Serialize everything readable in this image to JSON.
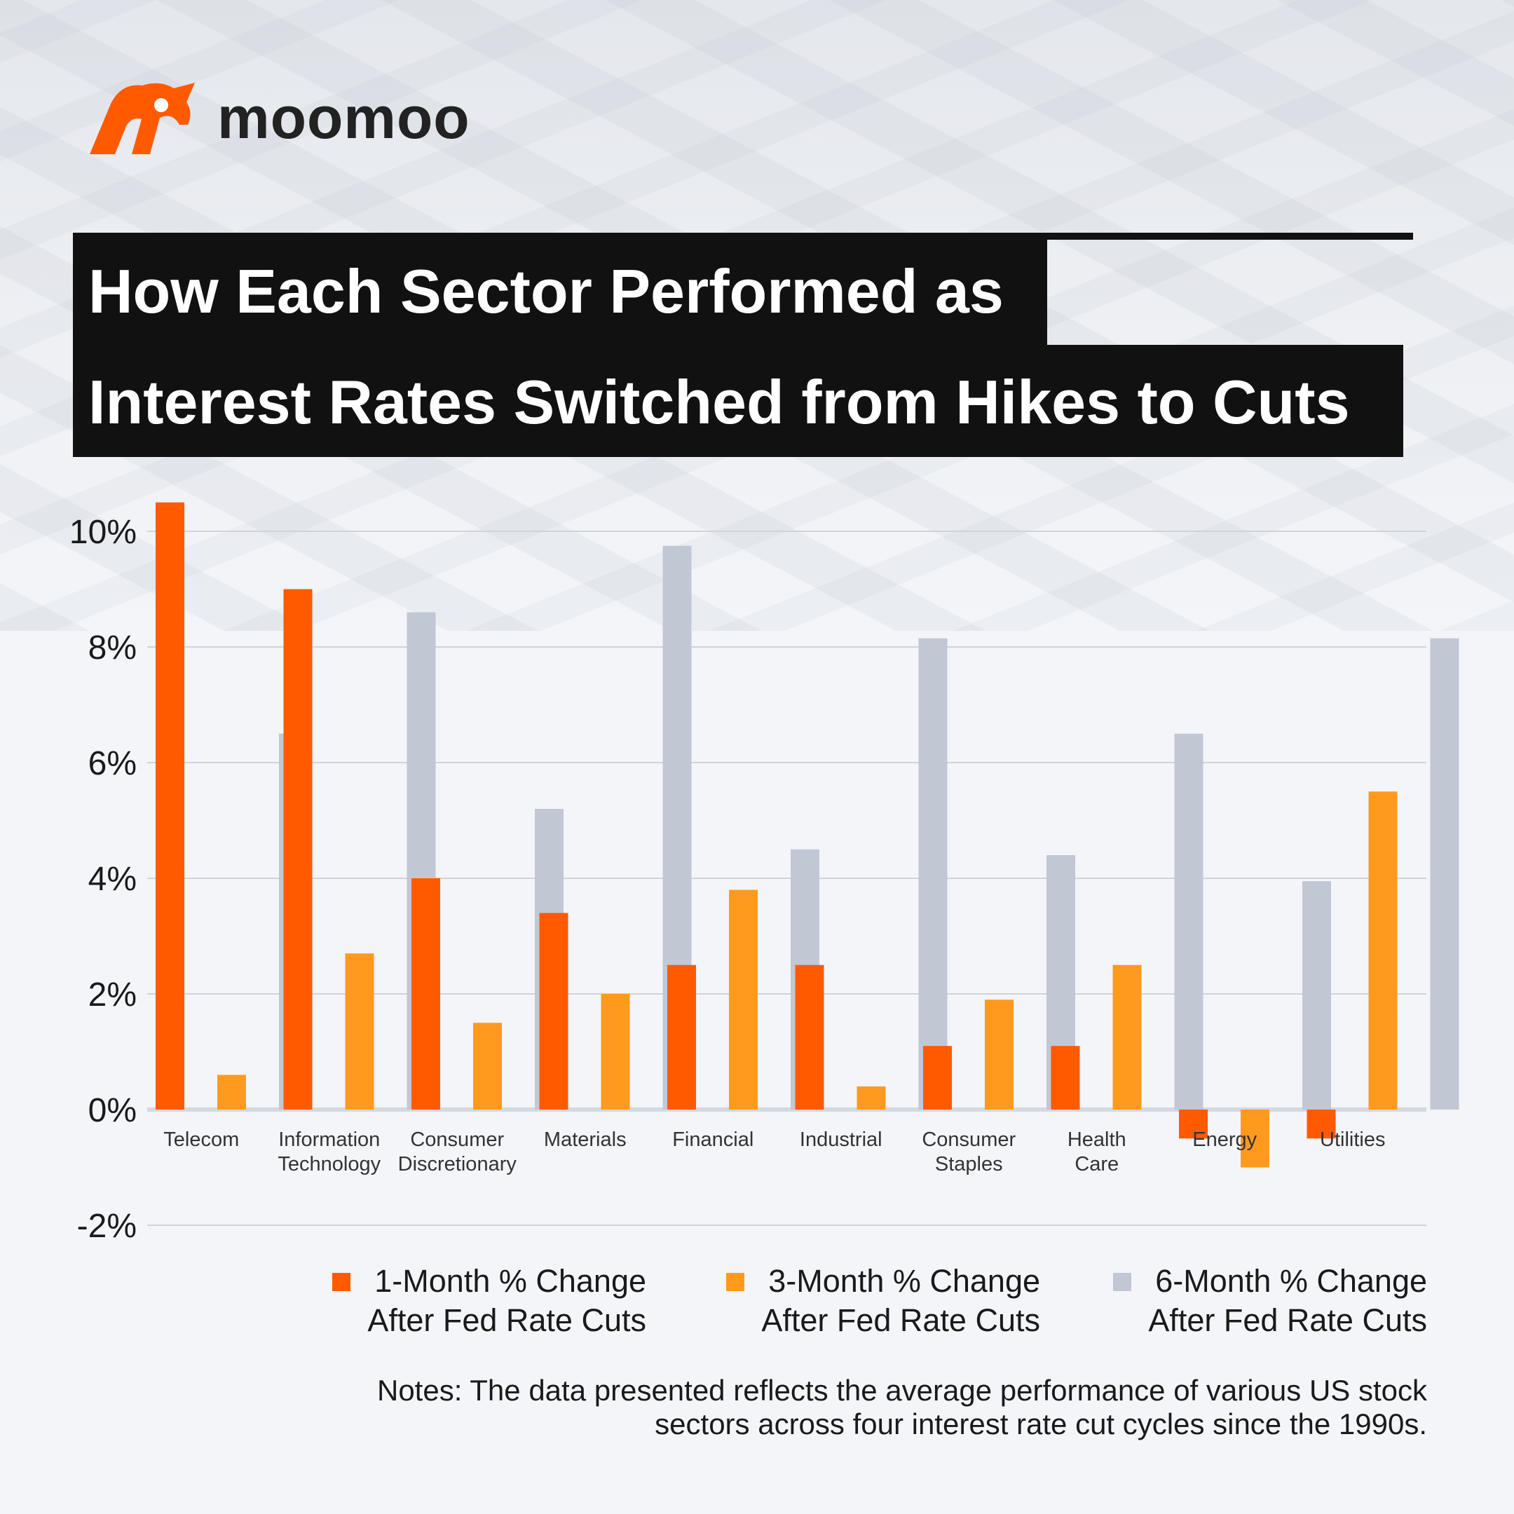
{
  "brand": {
    "name": "moomoo",
    "logo_icon": "moomoo-bull-icon",
    "color": "#ff5a00"
  },
  "title": {
    "line1": "How Each Sector Performed as",
    "line2": "Interest Rates Switched from Hikes to Cuts"
  },
  "chart_data": {
    "type": "bar",
    "categories": [
      [
        "Telecom"
      ],
      [
        "Information",
        "Technology"
      ],
      [
        "Consumer",
        "Discretionary"
      ],
      [
        "Materials"
      ],
      [
        "Financial"
      ],
      [
        "Industrial"
      ],
      [
        "Consumer",
        "Staples"
      ],
      [
        "Health",
        "Care"
      ],
      [
        "Energy"
      ],
      [
        "Utilities"
      ]
    ],
    "series": [
      {
        "name": "1-Month % Change After Fed Rate Cuts",
        "color": "#ff5a00",
        "values": [
          10.5,
          9.0,
          4.0,
          3.4,
          2.5,
          2.5,
          1.1,
          1.1,
          -0.5,
          -0.5
        ]
      },
      {
        "name": "3-Month % Change After Fed Rate Cuts",
        "color": "#ff9a1f",
        "values": [
          0.6,
          2.7,
          1.5,
          2.0,
          3.8,
          0.4,
          1.9,
          2.5,
          -1.0,
          5.5
        ]
      },
      {
        "name": "6-Month % Change After Fed Rate Cuts",
        "color": "#c2c7d4",
        "values": [
          6.5,
          8.6,
          5.2,
          9.75,
          4.5,
          8.15,
          4.4,
          6.5,
          3.95,
          8.15
        ]
      }
    ],
    "ylim": [
      -2,
      10
    ],
    "yticks": [
      10,
      8,
      6,
      4,
      2,
      0,
      -2
    ],
    "ytick_labels": [
      "10%",
      "8%",
      "6%",
      "4%",
      "2%",
      "0%",
      "-2%"
    ],
    "grid": true,
    "legend_position": "bottom-right"
  },
  "legend": [
    {
      "line1": "1-Month % Change",
      "line2": "After Fed Rate Cuts"
    },
    {
      "line1": "3-Month % Change",
      "line2": "After Fed Rate Cuts"
    },
    {
      "line1": "6-Month % Change",
      "line2": "After Fed Rate Cuts"
    }
  ],
  "notes": {
    "line1": "Notes: The data presented reflects the average performance of various US stock",
    "line2": "sectors across four interest rate cut cycles since the 1990s."
  }
}
